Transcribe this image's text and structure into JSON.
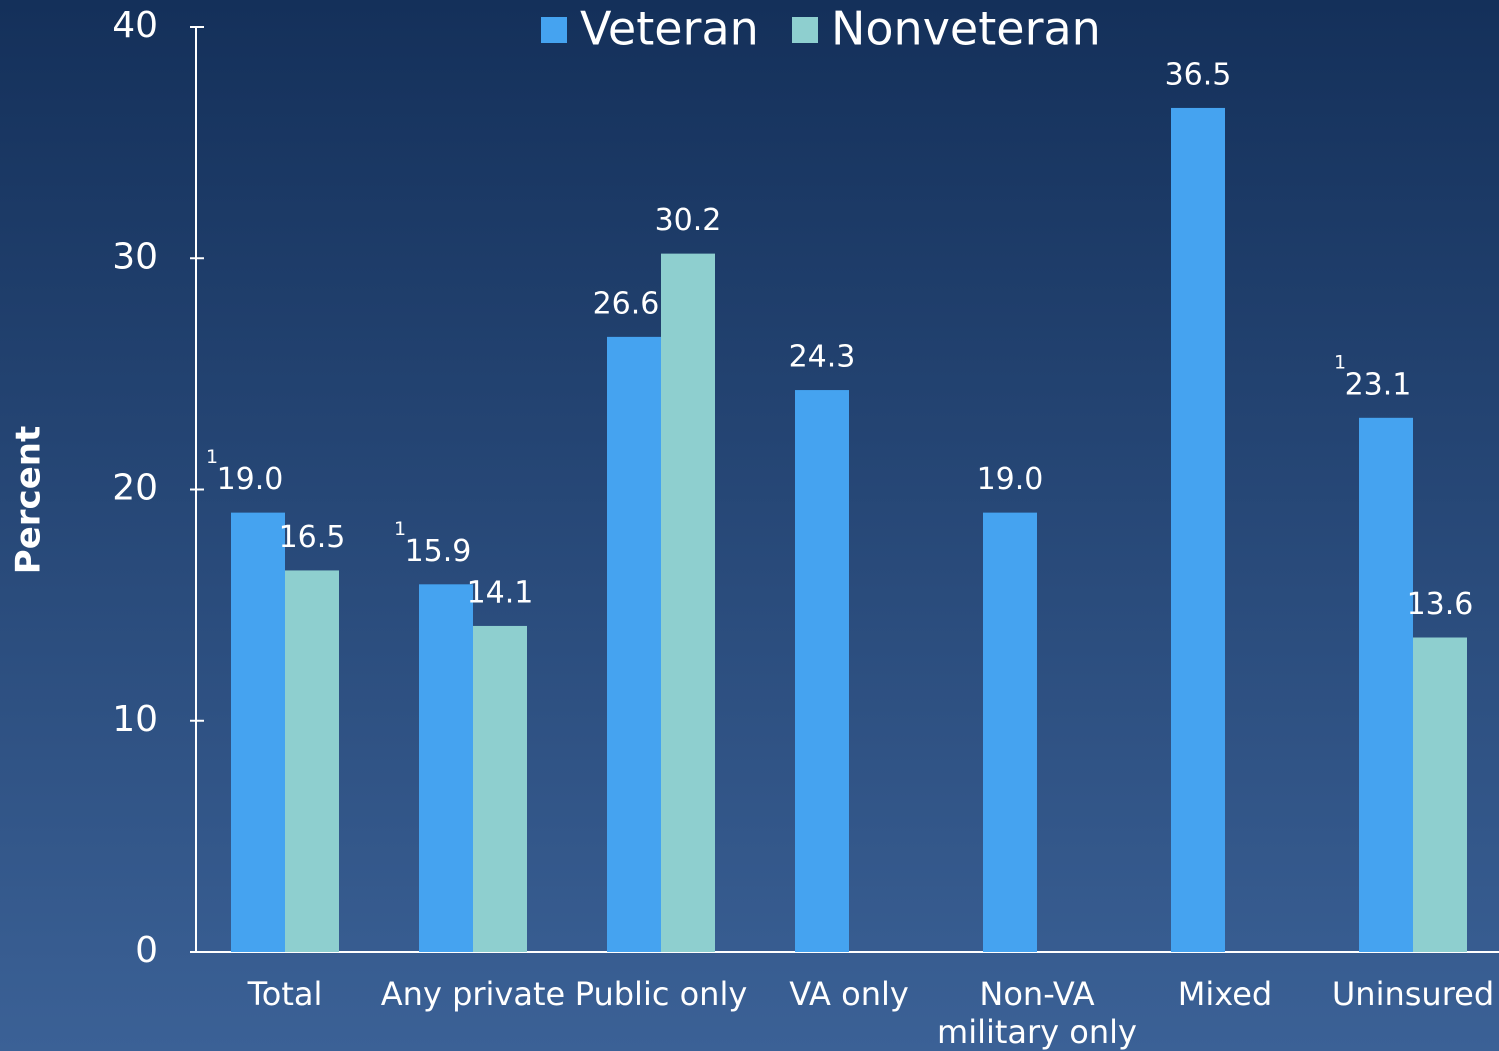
{
  "chart_data": {
    "type": "bar",
    "y_label": "Percent",
    "categories": [
      "Total",
      "Any private",
      "Public only",
      "VA only",
      "Non-VA\nmilitary only",
      "Mixed",
      "Uninsured"
    ],
    "series": [
      {
        "name": "Veteran",
        "color": "#45a3f0",
        "values": [
          19.0,
          15.9,
          26.6,
          24.3,
          19.0,
          36.5,
          23.1
        ],
        "value_labels": [
          "19.0",
          "15.9",
          "26.6",
          "24.3",
          "19.0",
          "36.5",
          "23.1"
        ],
        "footnote_marks": [
          "1",
          "1",
          null,
          null,
          null,
          null,
          "1"
        ]
      },
      {
        "name": "Nonveteran",
        "color": "#8ecfcf",
        "values": [
          16.5,
          14.1,
          30.2,
          null,
          null,
          null,
          13.6
        ],
        "value_labels": [
          "16.5",
          "14.1",
          "30.2",
          null,
          null,
          null,
          "13.6"
        ]
      }
    ],
    "ylim": [
      0,
      40
    ],
    "yticks": [
      0,
      10,
      20,
      30,
      40
    ],
    "legend": "top"
  }
}
